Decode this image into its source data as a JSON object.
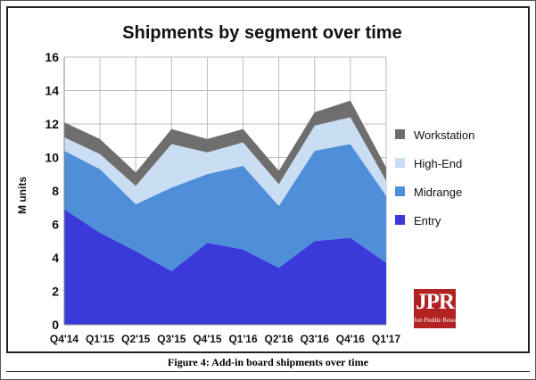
{
  "caption": "Figure 4: Add-in board shipments over time",
  "logo": {
    "mark": "JPR",
    "text": "Jon Peddie Research",
    "color": "#b22222"
  },
  "chart_data": {
    "type": "area",
    "stacked": true,
    "title": "Shipments by segment over time",
    "xlabel": "",
    "ylabel": "M units",
    "ylim": [
      0,
      16
    ],
    "yticks": [
      0,
      2,
      4,
      6,
      8,
      10,
      12,
      14,
      16
    ],
    "grid": true,
    "legend_position": "right",
    "categories": [
      "Q4'14",
      "Q1'15",
      "Q2'15",
      "Q3'15",
      "Q4'15",
      "Q1'16",
      "Q2'16",
      "Q3'16",
      "Q4'16",
      "Q1'17"
    ],
    "series": [
      {
        "name": "Entry",
        "color": "#3a3adb",
        "values": [
          6.9,
          5.5,
          4.4,
          3.2,
          4.9,
          4.5,
          3.4,
          5.0,
          5.2,
          3.7
        ]
      },
      {
        "name": "Midrange",
        "color": "#4f8ed8",
        "values": [
          3.5,
          3.8,
          2.8,
          5.0,
          4.1,
          5.0,
          3.7,
          5.4,
          5.6,
          4.0
        ]
      },
      {
        "name": "High-End",
        "color": "#c9ddf3",
        "values": [
          0.8,
          0.9,
          1.1,
          2.6,
          1.3,
          1.4,
          1.3,
          1.5,
          1.6,
          0.9
        ]
      },
      {
        "name": "Workstation",
        "color": "#6e6e6e",
        "values": [
          0.9,
          0.9,
          0.8,
          0.9,
          0.8,
          0.8,
          0.8,
          0.8,
          1.0,
          0.8
        ]
      }
    ],
    "legend_order": [
      "Workstation",
      "High-End",
      "Midrange",
      "Entry"
    ]
  }
}
